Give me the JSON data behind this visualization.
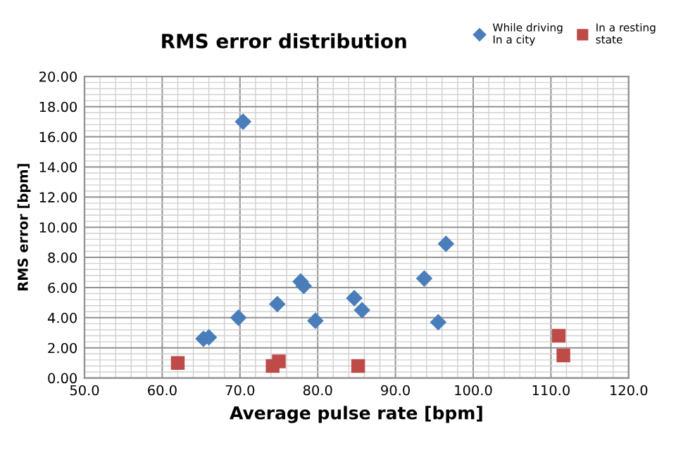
{
  "chart_data": {
    "type": "scatter",
    "title": "RMS error distribution",
    "xlabel": "Average pulse rate [bpm]",
    "ylabel": "RMS error [bpm]",
    "xlim": [
      50,
      120
    ],
    "ylim": [
      0,
      20
    ],
    "xticks": [
      {
        "value": 50,
        "label": "50.0"
      },
      {
        "value": 60,
        "label": "60.0"
      },
      {
        "value": 70,
        "label": "70.0"
      },
      {
        "value": 80,
        "label": "80.0"
      },
      {
        "value": 90,
        "label": "90.0"
      },
      {
        "value": 100,
        "label": "100.0"
      },
      {
        "value": 110,
        "label": "110.0"
      },
      {
        "value": 120,
        "label": "120.0"
      }
    ],
    "yticks": [
      {
        "value": 0,
        "label": "0.00"
      },
      {
        "value": 2,
        "label": "2.00"
      },
      {
        "value": 4,
        "label": "4.00"
      },
      {
        "value": 6,
        "label": "6.00"
      },
      {
        "value": 8,
        "label": "8.00"
      },
      {
        "value": 10,
        "label": "10.00"
      },
      {
        "value": 12,
        "label": "12.00"
      },
      {
        "value": 14,
        "label": "14.00"
      },
      {
        "value": 16,
        "label": "16.00"
      },
      {
        "value": 18,
        "label": "18.00"
      },
      {
        "value": 20,
        "label": "20.00"
      }
    ],
    "grid": true,
    "legend": "top right",
    "series": [
      {
        "name": "While driving\nIn a city",
        "color": "#4a7ebb",
        "marker": "diamond",
        "x": [
          65.3,
          66.0,
          69.8,
          70.4,
          74.8,
          77.8,
          78.2,
          79.7,
          84.7,
          85.7,
          93.7,
          95.5,
          96.5
        ],
        "values": [
          2.6,
          2.7,
          4.0,
          17.0,
          4.9,
          6.4,
          6.1,
          3.8,
          5.3,
          4.5,
          6.6,
          3.7,
          8.9
        ]
      },
      {
        "name": "In a resting\nstate",
        "color": "#be4b48",
        "marker": "square",
        "x": [
          62.0,
          74.2,
          75.0,
          85.2,
          111.0,
          111.6
        ],
        "values": [
          1.0,
          0.8,
          1.1,
          0.8,
          2.8,
          1.5
        ]
      }
    ]
  }
}
